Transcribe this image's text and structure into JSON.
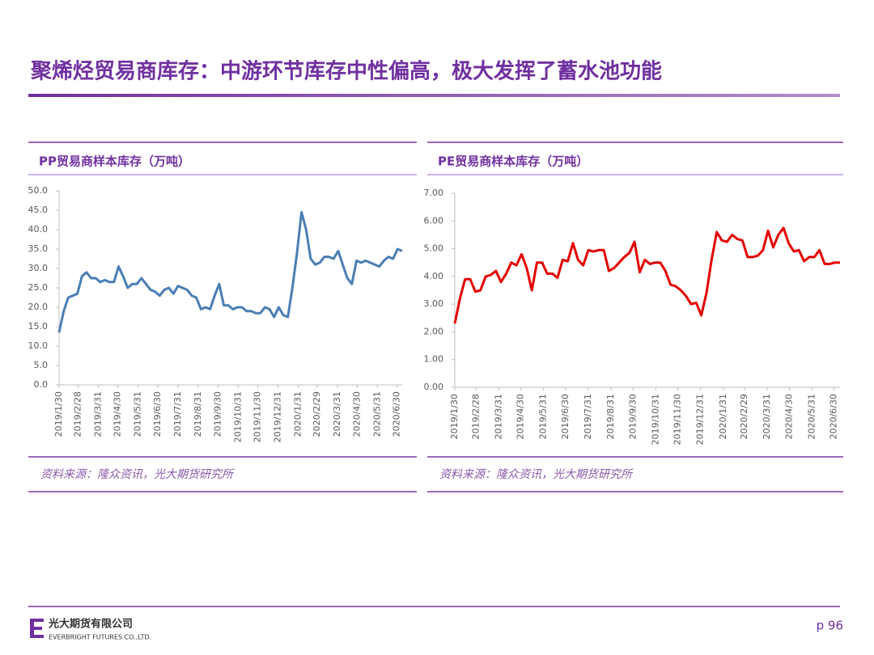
{
  "header": {
    "title": "聚烯烃贸易商库存：中游环节库存中性偏高，极大发挥了蓄水池功能"
  },
  "chart_data": [
    {
      "type": "line",
      "title": "PP贸易商样本库存（万吨）",
      "color": "#4a7eb5",
      "x": [
        "2019/1/30",
        "2019/2/6",
        "2019/2/13",
        "2019/2/20",
        "2019/2/27",
        "2019/3/6",
        "2019/3/13",
        "2019/3/20",
        "2019/3/27",
        "2019/4/3",
        "2019/4/10",
        "2019/4/17",
        "2019/4/24",
        "2019/5/1",
        "2019/5/8",
        "2019/5/15",
        "2019/5/22",
        "2019/5/29",
        "2019/6/5",
        "2019/6/12",
        "2019/6/19",
        "2019/6/26",
        "2019/7/3",
        "2019/7/10",
        "2019/7/17",
        "2019/7/24",
        "2019/7/31",
        "2019/8/7",
        "2019/8/14",
        "2019/8/21",
        "2019/8/28",
        "2019/9/4",
        "2019/9/11",
        "2019/9/18",
        "2019/9/25",
        "2019/10/2",
        "2019/10/9",
        "2019/10/16",
        "2019/10/23",
        "2019/10/30",
        "2019/11/6",
        "2019/11/13",
        "2019/11/20",
        "2019/11/27",
        "2019/12/4",
        "2019/12/11",
        "2019/12/18",
        "2019/12/25",
        "2020/1/1",
        "2020/1/8",
        "2020/1/15",
        "2020/1/22",
        "2020/1/29",
        "2020/2/5",
        "2020/2/12",
        "2020/2/19",
        "2020/2/26",
        "2020/3/4",
        "2020/3/11",
        "2020/3/18",
        "2020/3/25",
        "2020/4/1",
        "2020/4/8",
        "2020/4/15",
        "2020/4/22",
        "2020/4/29",
        "2020/5/6",
        "2020/5/13",
        "2020/5/20",
        "2020/5/27",
        "2020/6/3",
        "2020/6/10",
        "2020/6/17",
        "2020/6/24",
        "2020/7/1",
        "2020/7/8"
      ],
      "values": [
        13.5,
        19,
        22.5,
        23,
        23.5,
        28,
        29,
        27.5,
        27.5,
        26.5,
        27,
        26.5,
        26.5,
        30.5,
        28,
        25,
        26,
        26,
        27.5,
        26,
        24.5,
        24,
        23,
        24.5,
        25,
        23.5,
        25.5,
        25,
        24.5,
        23,
        22.5,
        19.5,
        20,
        19.5,
        23,
        26,
        20.5,
        20.5,
        19.5,
        20,
        20,
        19,
        19,
        18.5,
        18.5,
        20,
        19.5,
        17.5,
        20,
        18,
        17.5,
        25,
        34,
        44.5,
        40,
        32.5,
        31,
        31.5,
        33,
        33,
        32.5,
        34.5,
        31,
        27.5,
        26,
        32,
        31.5,
        32,
        31.5,
        31,
        30.5,
        32,
        33,
        32.5,
        35,
        34.5
      ],
      "xlim": [
        "2019/1/30",
        "2020/7/8"
      ],
      "xticks": [
        "2019/1/30",
        "2019/2/28",
        "2019/3/31",
        "2019/4/30",
        "2019/5/31",
        "2019/6/30",
        "2019/7/31",
        "2019/8/31",
        "2019/9/30",
        "2019/10/31",
        "2019/11/30",
        "2019/12/31",
        "2020/1/31",
        "2020/2/29",
        "2020/3/31",
        "2020/4/30",
        "2020/5/31",
        "2020/6/30"
      ],
      "ylim": [
        0,
        50
      ],
      "yticks": [
        {
          "value": 0,
          "label": "0.0"
        },
        {
          "value": 5,
          "label": "5.0"
        },
        {
          "value": 10,
          "label": "10.0"
        },
        {
          "value": 15,
          "label": "15.0"
        },
        {
          "value": 20,
          "label": "20.0"
        },
        {
          "value": 25,
          "label": "25.0"
        },
        {
          "value": 30,
          "label": "30.0"
        },
        {
          "value": 35,
          "label": "35.0"
        },
        {
          "value": 40,
          "label": "40.0"
        },
        {
          "value": 45,
          "label": "45.0"
        },
        {
          "value": 50,
          "label": "50.0"
        }
      ],
      "source": "资料来源：隆众资讯，光大期货研究所"
    },
    {
      "type": "line",
      "title": "PE贸易商样本库存（万吨）",
      "color": "#e30000",
      "x": [
        "2019/1/30",
        "2019/2/6",
        "2019/2/13",
        "2019/2/20",
        "2019/2/27",
        "2019/3/6",
        "2019/3/13",
        "2019/3/20",
        "2019/3/27",
        "2019/4/3",
        "2019/4/10",
        "2019/4/17",
        "2019/4/24",
        "2019/5/1",
        "2019/5/8",
        "2019/5/15",
        "2019/5/22",
        "2019/5/29",
        "2019/6/5",
        "2019/6/12",
        "2019/6/19",
        "2019/6/26",
        "2019/7/3",
        "2019/7/10",
        "2019/7/17",
        "2019/7/24",
        "2019/7/31",
        "2019/8/7",
        "2019/8/14",
        "2019/8/21",
        "2019/8/28",
        "2019/9/4",
        "2019/9/11",
        "2019/9/18",
        "2019/9/25",
        "2019/10/2",
        "2019/10/9",
        "2019/10/16",
        "2019/10/23",
        "2019/10/30",
        "2019/11/6",
        "2019/11/13",
        "2019/11/20",
        "2019/11/27",
        "2019/12/4",
        "2019/12/11",
        "2019/12/18",
        "2019/12/25",
        "2020/1/1",
        "2020/1/8",
        "2020/1/15",
        "2020/1/22",
        "2020/1/29",
        "2020/2/5",
        "2020/2/12",
        "2020/2/19",
        "2020/2/26",
        "2020/3/4",
        "2020/3/11",
        "2020/3/18",
        "2020/3/25",
        "2020/4/1",
        "2020/4/8",
        "2020/4/15",
        "2020/4/22",
        "2020/4/29",
        "2020/5/6",
        "2020/5/13",
        "2020/5/20",
        "2020/5/27",
        "2020/6/3",
        "2020/6/10",
        "2020/6/17",
        "2020/6/24",
        "2020/7/1",
        "2020/7/8"
      ],
      "values": [
        2.3,
        3.2,
        3.9,
        3.9,
        3.45,
        3.5,
        4.0,
        4.05,
        4.2,
        3.8,
        4.1,
        4.5,
        4.4,
        4.8,
        4.3,
        3.5,
        4.5,
        4.5,
        4.1,
        4.1,
        3.95,
        4.6,
        4.55,
        5.2,
        4.6,
        4.4,
        4.95,
        4.9,
        4.95,
        4.95,
        4.2,
        4.3,
        4.5,
        4.7,
        4.85,
        5.25,
        4.15,
        4.6,
        4.45,
        4.5,
        4.5,
        4.2,
        3.7,
        3.65,
        3.5,
        3.3,
        3.0,
        3.05,
        2.6,
        3.4,
        4.6,
        5.6,
        5.3,
        5.25,
        5.5,
        5.35,
        5.3,
        4.7,
        4.7,
        4.75,
        4.95,
        5.65,
        5.05,
        5.5,
        5.75,
        5.2,
        4.9,
        4.95,
        4.55,
        4.7,
        4.7,
        4.95,
        4.45,
        4.45,
        4.5,
        4.5
      ],
      "xlim": [
        "2019/1/30",
        "2020/7/8"
      ],
      "xticks": [
        "2019/1/30",
        "2019/2/28",
        "2019/3/31",
        "2019/4/30",
        "2019/5/31",
        "2019/6/30",
        "2019/7/31",
        "2019/8/31",
        "2019/9/30",
        "2019/10/31",
        "2019/11/30",
        "2019/12/31",
        "2020/1/31",
        "2020/2/29",
        "2020/3/31",
        "2020/4/30",
        "2020/5/31",
        "2020/6/30"
      ],
      "ylim": [
        0,
        7
      ],
      "yticks": [
        {
          "value": 0,
          "label": "0.00"
        },
        {
          "value": 1,
          "label": "1.00"
        },
        {
          "value": 2,
          "label": "2.00"
        },
        {
          "value": 3,
          "label": "3.00"
        },
        {
          "value": 4,
          "label": "4.00"
        },
        {
          "value": 5,
          "label": "5.00"
        },
        {
          "value": 6,
          "label": "6.00"
        },
        {
          "value": 7,
          "label": "7.00"
        }
      ],
      "source": "资料来源：隆众资讯，光大期货研究所"
    }
  ],
  "footer": {
    "company": "光大期货有限公司",
    "company_en": "EVERBRIGHT FUTURES CO.,LTD.",
    "page": "p 96"
  }
}
